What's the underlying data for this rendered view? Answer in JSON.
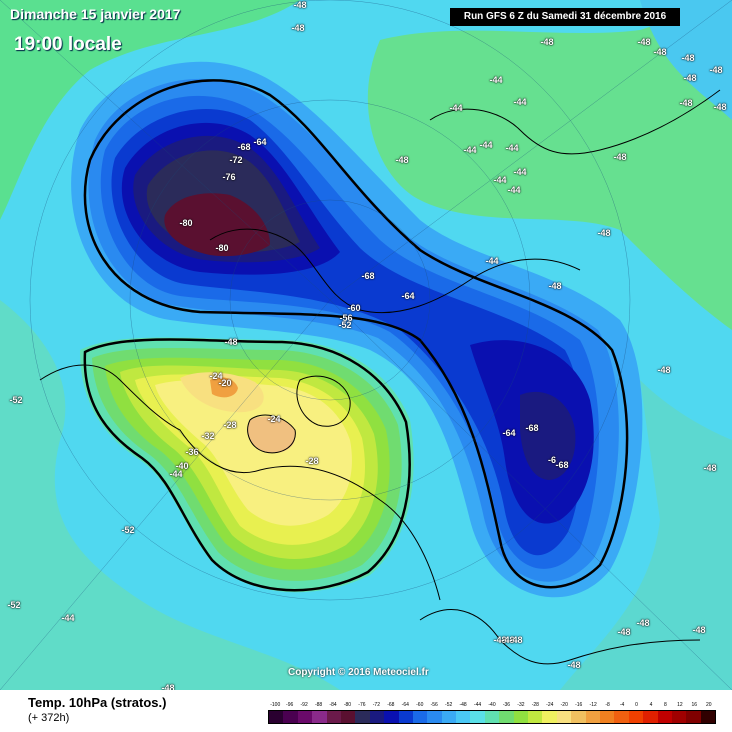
{
  "header": {
    "date": "Dimanche 15 janvier 2017",
    "local_time": "19:00 locale",
    "run_info": "Run GFS 6 Z du Samedi 31 décembre 2016"
  },
  "footer": {
    "parameter": "Temp. 10hPa (stratos.)",
    "forecast_hour": "(+ 372h)",
    "copyright": "Copyright © 2016 Meteociel.fr"
  },
  "map_labels": [
    {
      "text": "-48"
    },
    {
      "text": "-48"
    },
    {
      "text": "-48"
    },
    {
      "text": "-48"
    },
    {
      "text": "-48"
    },
    {
      "text": "-48"
    },
    {
      "text": "-48"
    },
    {
      "text": "-48"
    },
    {
      "text": "-48"
    },
    {
      "text": "-48"
    },
    {
      "text": "-48"
    },
    {
      "text": "-48"
    },
    {
      "text": "-48"
    },
    {
      "text": "-48"
    },
    {
      "text": "-48"
    },
    {
      "text": "-48"
    },
    {
      "text": "-48"
    },
    {
      "text": "-48"
    },
    {
      "text": "-48"
    },
    {
      "text": "-48"
    },
    {
      "text": "-44"
    },
    {
      "text": "-44"
    },
    {
      "text": "-44"
    },
    {
      "text": "-44"
    },
    {
      "text": "-44"
    },
    {
      "text": "-44"
    },
    {
      "text": "-44"
    },
    {
      "text": "-44"
    },
    {
      "text": "-44"
    },
    {
      "text": "-44"
    },
    {
      "text": "-64"
    },
    {
      "text": "-68"
    },
    {
      "text": "-72"
    },
    {
      "text": "-76"
    },
    {
      "text": "-80"
    },
    {
      "text": "-80"
    },
    {
      "text": "-68"
    },
    {
      "text": "-64"
    },
    {
      "text": "-60"
    },
    {
      "text": "-56"
    },
    {
      "text": "-52"
    },
    {
      "text": "-48"
    },
    {
      "text": "-24"
    },
    {
      "text": "-20"
    },
    {
      "text": "-24"
    },
    {
      "text": "-28"
    },
    {
      "text": "-32"
    },
    {
      "text": "-36"
    },
    {
      "text": "-40"
    },
    {
      "text": "-44"
    },
    {
      "text": "-28"
    },
    {
      "text": "-52"
    },
    {
      "text": "-52"
    },
    {
      "text": "-52"
    },
    {
      "text": "-64"
    },
    {
      "text": "-68"
    },
    {
      "text": "-68"
    },
    {
      "text": "-6"
    },
    {
      "text": "-44"
    },
    {
      "text": "-48"
    },
    {
      "text": "-48"
    },
    {
      "text": "-48"
    },
    {
      "text": "-48"
    }
  ],
  "legend": {
    "ticks": [
      "-100",
      "-96",
      "-92",
      "-88",
      "-84",
      "-80",
      "-76",
      "-72",
      "-68",
      "-64",
      "-60",
      "-56",
      "-52",
      "-48",
      "-44",
      "-40",
      "-36",
      "-32",
      "-28",
      "-24",
      "-20",
      "-16",
      "-12",
      "-8",
      "-4",
      "0",
      "4",
      "8",
      "12",
      "16",
      "20"
    ],
    "colors": [
      "#2a0030",
      "#4a0050",
      "#6a0a6a",
      "#8a2a8a",
      "#6b1a4a",
      "#5a1030",
      "#2b2b5a",
      "#1a1a80",
      "#0a10b0",
      "#0a3ad0",
      "#1a6ae8",
      "#2a8af0",
      "#3aaaf5",
      "#4ac8f5",
      "#5ae0e8",
      "#60e0b0",
      "#70dc70",
      "#90e040",
      "#c0e840",
      "#f0f060",
      "#f8e080",
      "#f0c060",
      "#f0a040",
      "#f08020",
      "#f06010",
      "#f04000",
      "#e02000",
      "#c00000",
      "#a00000",
      "#800000",
      "#300000"
    ]
  }
}
